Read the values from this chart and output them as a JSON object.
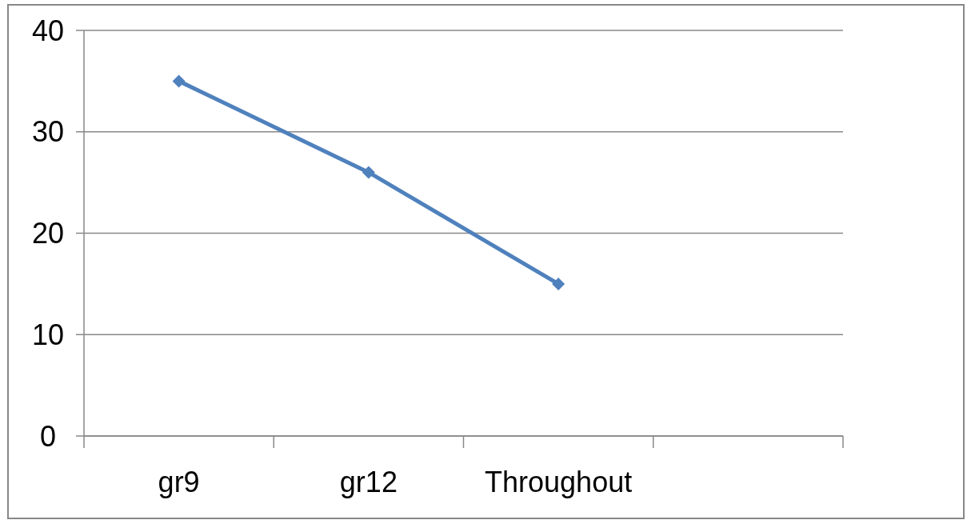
{
  "chart_data": {
    "type": "line",
    "categories": [
      "gr9",
      "gr12",
      "Throughout",
      null
    ],
    "series": [
      {
        "color": "#4f81bd",
        "values": [
          35,
          26,
          15,
          null
        ]
      }
    ],
    "ylim": [
      0,
      40
    ],
    "yticks": [
      0,
      10,
      20,
      30,
      40
    ],
    "grid": "y",
    "marker": "diamond",
    "line_style": "solid"
  }
}
